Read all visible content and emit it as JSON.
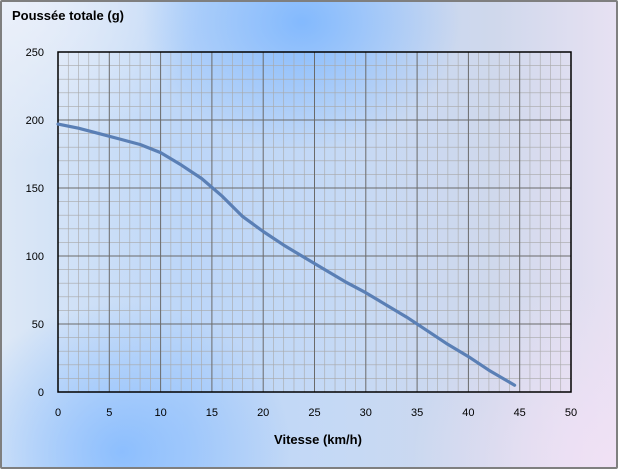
{
  "chart_data": {
    "type": "line",
    "title": "",
    "ylabel": "Poussée totale (g)",
    "xlabel": "Vitesse (km/h)",
    "xlim": [
      0,
      50
    ],
    "ylim": [
      0,
      250
    ],
    "x_ticks": [
      "0",
      "5",
      "10",
      "15",
      "20",
      "25",
      "30",
      "35",
      "40",
      "45",
      "50"
    ],
    "y_ticks": [
      "0",
      "50",
      "100",
      "150",
      "200",
      "250"
    ],
    "grid": true,
    "series": [
      {
        "color": "#5a7fb5",
        "x": [
          0,
          2,
          4,
          6,
          8,
          10,
          12,
          14,
          16,
          18,
          20,
          22,
          24,
          26,
          28,
          30,
          32,
          34,
          36,
          38,
          40,
          42,
          44.5
        ],
        "y": [
          197,
          194,
          190,
          186,
          182,
          176,
          167,
          157,
          144,
          129,
          118,
          108,
          99,
          90,
          81,
          73,
          64,
          55,
          45,
          35,
          26,
          16,
          5
        ]
      }
    ]
  }
}
